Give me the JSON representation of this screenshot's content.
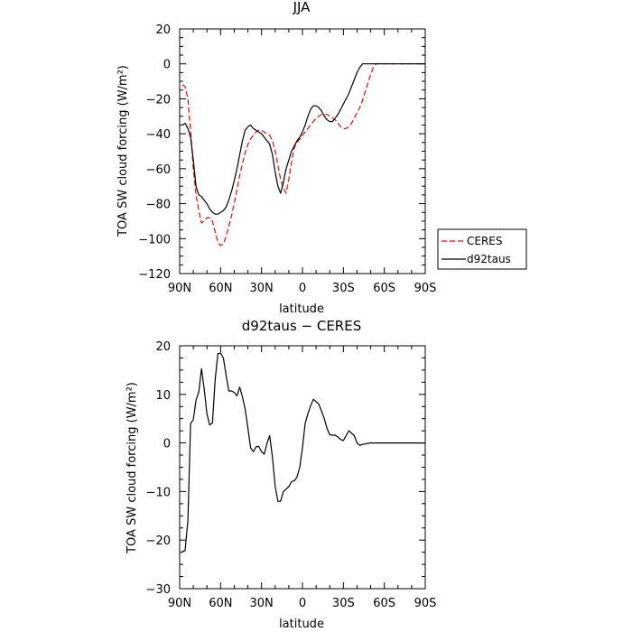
{
  "chart_data": [
    {
      "type": "line",
      "title": "JJA",
      "xlabel": "latitude",
      "ylabel": "TOA SW cloud forcing (W/m²)",
      "xlim": [
        90,
        -90
      ],
      "ylim": [
        -120,
        20
      ],
      "x_ticks": [
        90,
        60,
        30,
        0,
        -30,
        -60,
        -90
      ],
      "x_tick_labels": [
        "90N",
        "60N",
        "30N",
        "0",
        "30S",
        "60S",
        "90S"
      ],
      "y_ticks": [
        -120,
        -100,
        -80,
        -60,
        -40,
        -20,
        0,
        20
      ],
      "y_tick_labels": [
        "−120",
        "−100",
        "−80",
        "−60",
        "−40",
        "−20",
        "0",
        "20"
      ],
      "grid": false,
      "legend_position": "right",
      "series": [
        {
          "name": "CERES",
          "color": "#ff0000",
          "dash": "dashed",
          "points": [
            [
              88,
              -12
            ],
            [
              86,
              -13
            ],
            [
              84,
              -20
            ],
            [
              82,
              -38
            ],
            [
              80,
              -60
            ],
            [
              78,
              -75
            ],
            [
              76,
              -84
            ],
            [
              74,
              -91
            ],
            [
              72,
              -90
            ],
            [
              70,
              -88
            ],
            [
              68,
              -88
            ],
            [
              66,
              -90
            ],
            [
              64,
              -96
            ],
            [
              62,
              -102
            ],
            [
              60,
              -104
            ],
            [
              58,
              -103
            ],
            [
              56,
              -99
            ],
            [
              54,
              -93
            ],
            [
              52,
              -87
            ],
            [
              50,
              -80
            ],
            [
              48,
              -72
            ],
            [
              46,
              -64
            ],
            [
              44,
              -57
            ],
            [
              42,
              -51
            ],
            [
              40,
              -46
            ],
            [
              38,
              -43
            ],
            [
              36,
              -41
            ],
            [
              34,
              -39
            ],
            [
              32,
              -38
            ],
            [
              30,
              -38
            ],
            [
              28,
              -39
            ],
            [
              26,
              -40
            ],
            [
              24,
              -41
            ],
            [
              22,
              -44
            ],
            [
              20,
              -50
            ],
            [
              18,
              -58
            ],
            [
              16,
              -66
            ],
            [
              14,
              -71
            ],
            [
              12,
              -74
            ],
            [
              10,
              -66
            ],
            [
              8,
              -56
            ],
            [
              6,
              -48
            ],
            [
              4,
              -45
            ],
            [
              2,
              -43
            ],
            [
              0,
              -41
            ],
            [
              -2,
              -39
            ],
            [
              -4,
              -37
            ],
            [
              -6,
              -35
            ],
            [
              -8,
              -33
            ],
            [
              -10,
              -31
            ],
            [
              -12,
              -30
            ],
            [
              -14,
              -29
            ],
            [
              -16,
              -29
            ],
            [
              -18,
              -29
            ],
            [
              -20,
              -30
            ],
            [
              -22,
              -31
            ],
            [
              -24,
              -32
            ],
            [
              -26,
              -34
            ],
            [
              -28,
              -36
            ],
            [
              -30,
              -37
            ],
            [
              -32,
              -37
            ],
            [
              -34,
              -36
            ],
            [
              -36,
              -34
            ],
            [
              -38,
              -31
            ],
            [
              -40,
              -28
            ],
            [
              -42,
              -25
            ],
            [
              -44,
              -21
            ],
            [
              -46,
              -16
            ],
            [
              -48,
              -11
            ],
            [
              -50,
              -6
            ],
            [
              -52,
              -2
            ],
            [
              -54,
              0
            ],
            [
              -56,
              0
            ],
            [
              -60,
              0
            ],
            [
              -64,
              0
            ],
            [
              -70,
              0
            ],
            [
              -80,
              0
            ],
            [
              -90,
              0
            ]
          ]
        },
        {
          "name": "d92taus",
          "color": "#000000",
          "dash": "solid",
          "points": [
            [
              88,
              -35
            ],
            [
              86,
              -34
            ],
            [
              84,
              -37
            ],
            [
              82,
              -42
            ],
            [
              80,
              -55
            ],
            [
              78,
              -70
            ],
            [
              76,
              -75
            ],
            [
              74,
              -76
            ],
            [
              72,
              -78
            ],
            [
              70,
              -80
            ],
            [
              68,
              -83
            ],
            [
              66,
              -85
            ],
            [
              64,
              -86
            ],
            [
              62,
              -86
            ],
            [
              60,
              -85
            ],
            [
              58,
              -84
            ],
            [
              56,
              -82
            ],
            [
              54,
              -78
            ],
            [
              52,
              -73
            ],
            [
              50,
              -67
            ],
            [
              48,
              -60
            ],
            [
              46,
              -52
            ],
            [
              44,
              -44
            ],
            [
              42,
              -38
            ],
            [
              40,
              -36
            ],
            [
              38,
              -35
            ],
            [
              36,
              -37
            ],
            [
              34,
              -38
            ],
            [
              32,
              -39
            ],
            [
              30,
              -40
            ],
            [
              28,
              -42
            ],
            [
              26,
              -44
            ],
            [
              24,
              -46
            ],
            [
              22,
              -52
            ],
            [
              20,
              -62
            ],
            [
              18,
              -70
            ],
            [
              16,
              -74
            ],
            [
              14,
              -68
            ],
            [
              12,
              -60
            ],
            [
              10,
              -55
            ],
            [
              8,
              -50
            ],
            [
              6,
              -47
            ],
            [
              4,
              -44
            ],
            [
              2,
              -42
            ],
            [
              0,
              -39
            ],
            [
              -2,
              -35
            ],
            [
              -4,
              -30
            ],
            [
              -6,
              -26
            ],
            [
              -8,
              -24
            ],
            [
              -10,
              -24
            ],
            [
              -12,
              -25
            ],
            [
              -14,
              -27
            ],
            [
              -16,
              -30
            ],
            [
              -18,
              -32
            ],
            [
              -20,
              -33
            ],
            [
              -22,
              -33
            ],
            [
              -24,
              -31
            ],
            [
              -26,
              -29
            ],
            [
              -28,
              -26
            ],
            [
              -30,
              -23
            ],
            [
              -32,
              -20
            ],
            [
              -34,
              -17
            ],
            [
              -36,
              -13
            ],
            [
              -38,
              -9
            ],
            [
              -40,
              -5
            ],
            [
              -42,
              -2
            ],
            [
              -44,
              0
            ],
            [
              -46,
              0
            ],
            [
              -50,
              0
            ],
            [
              -56,
              0
            ],
            [
              -60,
              0
            ],
            [
              -70,
              0
            ],
            [
              -80,
              0
            ],
            [
              -90,
              0
            ]
          ]
        }
      ]
    },
    {
      "type": "line",
      "title": "d92taus − CERES",
      "xlabel": "latitude",
      "ylabel": "TOA SW cloud forcing (W/m²)",
      "xlim": [
        90,
        -90
      ],
      "ylim": [
        -30,
        20
      ],
      "x_ticks": [
        90,
        60,
        30,
        0,
        -30,
        -60,
        -90
      ],
      "x_tick_labels": [
        "90N",
        "60N",
        "30N",
        "0",
        "30S",
        "60S",
        "90S"
      ],
      "y_ticks": [
        -30,
        -20,
        -10,
        0,
        10,
        20
      ],
      "y_tick_labels": [
        "−30",
        "−20",
        "−10",
        "0",
        "10",
        "20"
      ],
      "grid": false,
      "series": [
        {
          "name": "",
          "color": "#000000",
          "dash": "solid",
          "points": [
            [
              88,
              -22.3
            ],
            [
              86,
              -22.2
            ],
            [
              84,
              -16
            ],
            [
              82,
              4
            ],
            [
              80,
              4.8
            ],
            [
              78,
              8.8
            ],
            [
              76,
              10.5
            ],
            [
              74,
              15.3
            ],
            [
              72,
              11
            ],
            [
              70,
              6
            ],
            [
              68,
              3.7
            ],
            [
              66,
              4.1
            ],
            [
              64,
              13
            ],
            [
              62,
              18.4
            ],
            [
              60,
              18.5
            ],
            [
              58,
              17.5
            ],
            [
              56,
              14
            ],
            [
              54,
              10.7
            ],
            [
              52,
              10.7
            ],
            [
              50,
              10.4
            ],
            [
              48,
              9.7
            ],
            [
              46,
              11.5
            ],
            [
              44,
              9.5
            ],
            [
              42,
              7
            ],
            [
              40,
              3
            ],
            [
              38,
              -1
            ],
            [
              36,
              -1.8
            ],
            [
              34,
              -0.8
            ],
            [
              32,
              -0.7
            ],
            [
              30,
              -1.8
            ],
            [
              28,
              -2.3
            ],
            [
              26,
              -0.1
            ],
            [
              24,
              1.5
            ],
            [
              22,
              -3
            ],
            [
              20,
              -9
            ],
            [
              18,
              -12
            ],
            [
              16,
              -12
            ],
            [
              14,
              -10
            ],
            [
              12,
              -9.5
            ],
            [
              10,
              -9
            ],
            [
              8,
              -8
            ],
            [
              6,
              -7.8
            ],
            [
              4,
              -7
            ],
            [
              2,
              -5
            ],
            [
              0,
              -1
            ],
            [
              -2,
              4
            ],
            [
              -4,
              6
            ],
            [
              -6,
              7.7
            ],
            [
              -8,
              9
            ],
            [
              -10,
              8.5
            ],
            [
              -12,
              8
            ],
            [
              -14,
              6.5
            ],
            [
              -16,
              5
            ],
            [
              -18,
              3
            ],
            [
              -20,
              1.7
            ],
            [
              -22,
              1.6
            ],
            [
              -24,
              1.6
            ],
            [
              -26,
              1.2
            ],
            [
              -28,
              0.7
            ],
            [
              -30,
              0.5
            ],
            [
              -32,
              1.5
            ],
            [
              -34,
              2.5
            ],
            [
              -36,
              2
            ],
            [
              -38,
              1.5
            ],
            [
              -40,
              0
            ],
            [
              -42,
              -0.5
            ],
            [
              -44,
              -0.3
            ],
            [
              -46,
              -0.2
            ],
            [
              -50,
              0
            ],
            [
              -56,
              0
            ],
            [
              -60,
              0
            ],
            [
              -70,
              0
            ],
            [
              -80,
              0
            ],
            [
              -90,
              0
            ]
          ]
        }
      ]
    }
  ]
}
